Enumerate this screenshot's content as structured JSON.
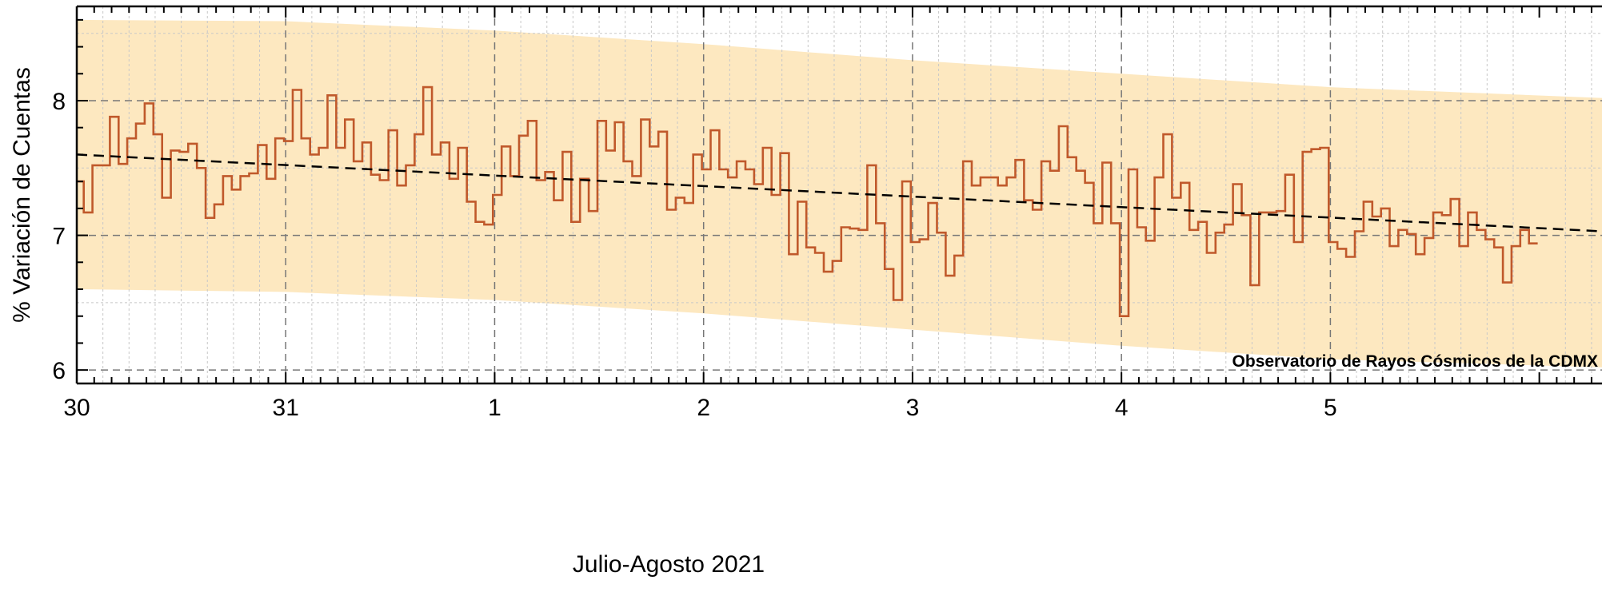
{
  "chart_data": {
    "type": "line",
    "xlabel": "Julio-Agosto 2021",
    "ylabel": "% Variación de Cuentas",
    "annotation": "Observatorio de Rayos Cósmicos de la CDMX",
    "xlim": [
      30,
      37.3
    ],
    "ylim": [
      5.9,
      8.7
    ],
    "x_ticks": [
      {
        "pos": 30,
        "label": "30"
      },
      {
        "pos": 31,
        "label": "31"
      },
      {
        "pos": 32,
        "label": "1"
      },
      {
        "pos": 33,
        "label": "2"
      },
      {
        "pos": 34,
        "label": "3"
      },
      {
        "pos": 35,
        "label": "4"
      },
      {
        "pos": 36,
        "label": "5"
      }
    ],
    "y_ticks": [
      {
        "value": 6,
        "label": "6"
      },
      {
        "value": 7,
        "label": "7"
      },
      {
        "value": 8,
        "label": "8"
      }
    ],
    "grid": true,
    "series": [
      {
        "kind": "step",
        "color": "#c0592b",
        "bin_width_days": 0.04167,
        "x_start": 29.95,
        "values": [
          7.45,
          7.4,
          7.17,
          7.52,
          7.52,
          7.88,
          7.53,
          7.72,
          7.83,
          7.98,
          7.75,
          7.28,
          7.63,
          7.62,
          7.68,
          7.5,
          7.13,
          7.23,
          7.44,
          7.34,
          7.44,
          7.46,
          7.67,
          7.42,
          7.72,
          7.7,
          8.08,
          7.72,
          7.6,
          7.65,
          8.04,
          7.65,
          7.86,
          7.55,
          7.69,
          7.45,
          7.41,
          7.78,
          7.37,
          7.52,
          7.75,
          8.1,
          7.6,
          7.69,
          7.42,
          7.65,
          7.25,
          7.1,
          7.08,
          7.3,
          7.66,
          7.44,
          7.74,
          7.85,
          7.41,
          7.47,
          7.26,
          7.62,
          7.1,
          7.42,
          7.18,
          7.85,
          7.63,
          7.84,
          7.55,
          7.44,
          7.86,
          7.66,
          7.77,
          7.19,
          7.28,
          7.24,
          7.6,
          7.49,
          7.78,
          7.49,
          7.43,
          7.55,
          7.49,
          7.38,
          7.65,
          7.3,
          7.61,
          6.86,
          7.25,
          6.91,
          6.87,
          6.73,
          6.81,
          7.06,
          7.05,
          7.04,
          7.52,
          7.09,
          6.75,
          6.52,
          7.4,
          6.95,
          6.97,
          7.24,
          7.02,
          6.7,
          6.85,
          7.55,
          7.37,
          7.43,
          7.43,
          7.37,
          7.43,
          7.56,
          7.26,
          7.19,
          7.55,
          7.48,
          7.81,
          7.58,
          7.48,
          7.39,
          7.09,
          7.54,
          7.09,
          6.4,
          7.49,
          7.06,
          6.96,
          7.43,
          7.75,
          7.28,
          7.39,
          7.04,
          7.1,
          6.87,
          7.02,
          7.08,
          7.38,
          7.15,
          6.63,
          7.17,
          7.17,
          7.18,
          7.45,
          6.95,
          7.62,
          7.64,
          7.65,
          6.95,
          6.9,
          6.84,
          7.03,
          7.25,
          7.14,
          7.2,
          6.92,
          7.04,
          7.01,
          6.86,
          6.98,
          7.17,
          7.15,
          7.27,
          6.92,
          7.17,
          7.04,
          6.97,
          6.91,
          6.65,
          6.92,
          7.04,
          6.94
        ]
      },
      {
        "kind": "trend",
        "style": "dashed",
        "color": "#000000",
        "x": [
          30,
          37.3
        ],
        "y": [
          7.6,
          7.03
        ]
      },
      {
        "kind": "band",
        "color": "#fde8c0",
        "x": [
          30,
          31,
          32,
          33,
          34,
          35,
          36,
          37.3
        ],
        "upper": [
          8.6,
          8.59,
          8.52,
          8.42,
          8.3,
          8.2,
          8.1,
          8.02
        ],
        "lower": [
          6.6,
          6.58,
          6.52,
          6.42,
          6.3,
          6.18,
          6.08,
          6.02
        ]
      }
    ]
  }
}
